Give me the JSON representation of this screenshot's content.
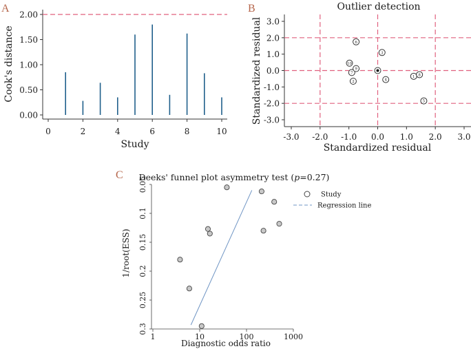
{
  "chart_data": [
    {
      "panel": "A",
      "type": "bar",
      "title": "",
      "xlabel": "Study",
      "ylabel": "Cook's distance",
      "x": [
        1,
        2,
        3,
        4,
        5,
        6,
        7,
        8,
        9,
        10
      ],
      "values": [
        0.85,
        0.28,
        0.64,
        0.35,
        1.6,
        1.8,
        0.4,
        1.62,
        0.83,
        0.35
      ],
      "xlim": [
        0,
        10
      ],
      "ylim": [
        0,
        2
      ],
      "xticks": [
        "0",
        "2",
        "4",
        "6",
        "8",
        "10"
      ],
      "yticks": [
        "0.00",
        "0.50",
        "1.00",
        "1.50",
        "2.00"
      ],
      "threshold": 2.0,
      "colors": {
        "bars": "#1f5f8b",
        "threshold": "#e0607e"
      }
    },
    {
      "panel": "B",
      "type": "scatter",
      "title": "Outlier detection",
      "xlabel": "Standardized residual",
      "ylabel": "Standardized residual",
      "xlim": [
        -3,
        3
      ],
      "ylim": [
        -3,
        3
      ],
      "xticks": [
        "-3.0",
        "-2.0",
        "-1.0",
        "0.0",
        "1.0",
        "2.0",
        "3.0"
      ],
      "yticks": [
        "3.0",
        "2.0",
        "1.0",
        "0.0",
        "-1.0",
        "-2.0",
        "-3.0"
      ],
      "reference_lines": {
        "x": [
          -2,
          0,
          2
        ],
        "y": [
          -2,
          0,
          2
        ]
      },
      "points": [
        {
          "label": "1",
          "x": 1.25,
          "y": -0.35
        },
        {
          "label": "2",
          "x": -0.85,
          "y": -0.65
        },
        {
          "label": "3",
          "x": 0.15,
          "y": 1.1
        },
        {
          "label": "4",
          "x": 0.28,
          "y": -0.55
        },
        {
          "label": "5",
          "x": 1.6,
          "y": -1.85
        },
        {
          "label": "6",
          "x": -0.75,
          "y": 1.75
        },
        {
          "label": "7",
          "x": -0.9,
          "y": -0.12
        },
        {
          "label": "8",
          "x": 1.45,
          "y": -0.25
        },
        {
          "label": "9",
          "x": -0.75,
          "y": 0.12
        },
        {
          "label": "10",
          "x": -0.98,
          "y": 0.45
        },
        {
          "label": "",
          "x": 0.0,
          "y": 0.0
        }
      ],
      "colors": {
        "reference": "#e0607e"
      }
    },
    {
      "panel": "C",
      "type": "scatter",
      "title": "Deeks' funnel plot asymmetry test (",
      "title_p_label": "p",
      "title_p_value": "=0.27)",
      "xlabel": "Diagnostic odds ratio",
      "ylabel": "1/root(ESS)",
      "x_scale": "log",
      "xlim": [
        1,
        1000
      ],
      "ylim_reversed": [
        0.05,
        0.3
      ],
      "xticks": [
        "1",
        "10",
        "100",
        "1000"
      ],
      "yticks": [
        "0.05",
        "0.1",
        "0.15",
        "0.2",
        "0.25",
        "0.3"
      ],
      "points": [
        {
          "x": 38,
          "y": 0.055
        },
        {
          "x": 210,
          "y": 0.062
        },
        {
          "x": 390,
          "y": 0.08
        },
        {
          "x": 15,
          "y": 0.127
        },
        {
          "x": 16.5,
          "y": 0.135
        },
        {
          "x": 230,
          "y": 0.13
        },
        {
          "x": 500,
          "y": 0.118
        },
        {
          "x": 3.8,
          "y": 0.18
        },
        {
          "x": 6,
          "y": 0.23
        },
        {
          "x": 11,
          "y": 0.295
        }
      ],
      "regression_line": {
        "x1": 6.5,
        "y1": 0.293,
        "x2": 130,
        "y2": 0.06
      },
      "legend": {
        "study_label": "Study",
        "regression_label": "Regression line"
      },
      "colors": {
        "points": "#c8c8c8",
        "regression": "#6f95c4"
      }
    }
  ]
}
